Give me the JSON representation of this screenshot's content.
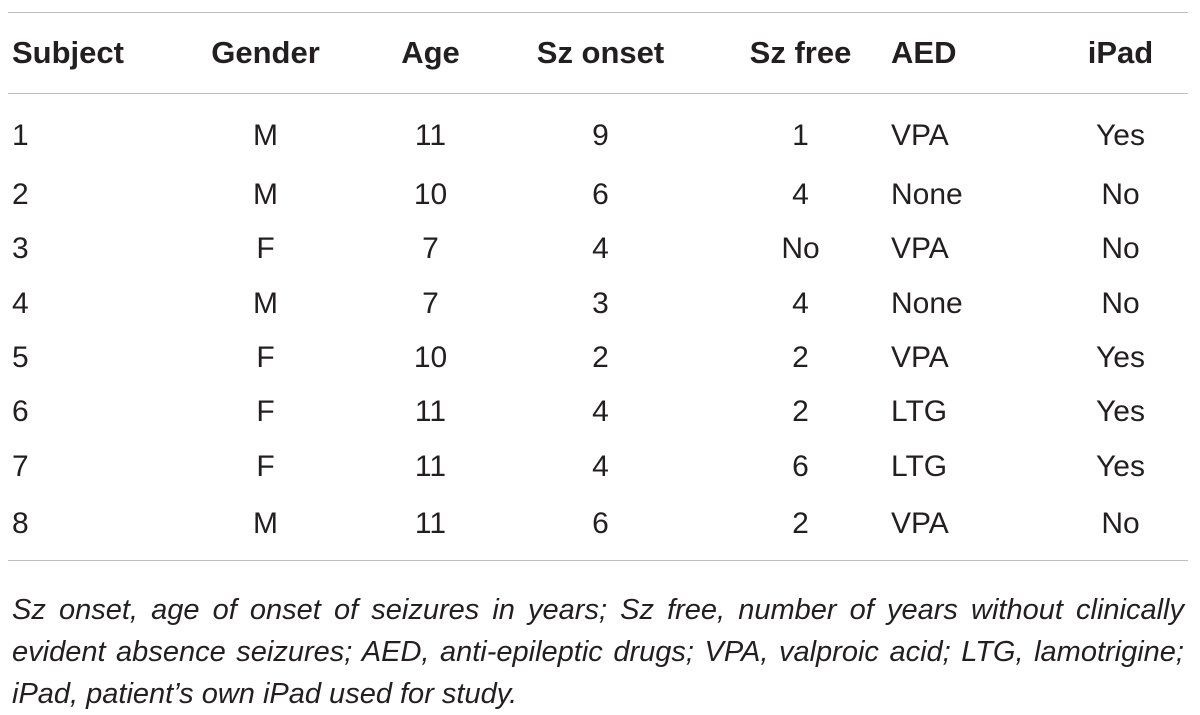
{
  "table": {
    "headers": [
      "Subject",
      "Gender",
      "Age",
      "Sz onset",
      "Sz free",
      "AED",
      "iPad"
    ],
    "rows": [
      [
        "1",
        "M",
        "11",
        "9",
        "1",
        "VPA",
        "Yes"
      ],
      [
        "2",
        "M",
        "10",
        "6",
        "4",
        "None",
        "No"
      ],
      [
        "3",
        "F",
        "7",
        "4",
        "No",
        "VPA",
        "No"
      ],
      [
        "4",
        "M",
        "7",
        "3",
        "4",
        "None",
        "No"
      ],
      [
        "5",
        "F",
        "10",
        "2",
        "2",
        "VPA",
        "Yes"
      ],
      [
        "6",
        "F",
        "11",
        "4",
        "2",
        "LTG",
        "Yes"
      ],
      [
        "7",
        "F",
        "11",
        "4",
        "6",
        "LTG",
        "Yes"
      ],
      [
        "8",
        "M",
        "11",
        "6",
        "2",
        "VPA",
        "No"
      ]
    ]
  },
  "footnote": "Sz onset, age of onset of seizures in years; Sz free, number of years without clinically evident absence seizures; AED, anti-epileptic drugs; VPA, valproic acid; LTG, lamotrigine; iPad, patient’s own iPad used for study."
}
